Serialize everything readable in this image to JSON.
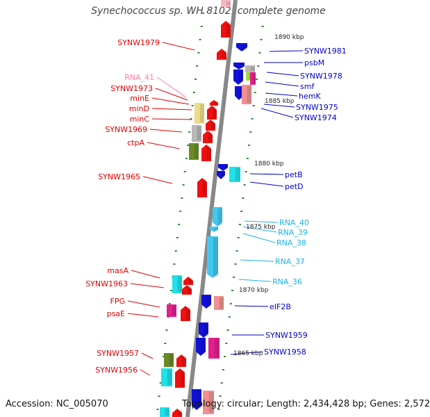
{
  "title": "Synechococcus sp. WH 8102, complete genome",
  "footer": {
    "accession": "Accession: NC_005070",
    "stats": "Topology: circular; Length: 2,434,428 bp; Genes: 2,572"
  },
  "colors": {
    "backbone": "#888888",
    "tick": "#2e8b2e",
    "left_label": "#e00000",
    "right_label": "#0000cc",
    "rna_right": "#1ab3e6",
    "rna_left": "#ff80a0",
    "cds_red": "#f01010",
    "cds_blue": "#1010d8",
    "rna_cyan": "#40c8f0",
    "yellow": "#eedd88",
    "gray": "#b8b8b8",
    "olive": "#6b8a26",
    "cyan": "#20e0e8",
    "magenta": "#e0208c",
    "pink": "#f09090",
    "lime": "#a0e040",
    "lightpink": "#f8b8c0"
  },
  "scale_labels": [
    "1890 kbp",
    "1885 kbp",
    "1880 kbp",
    "1875 kbp",
    "1870 kbp",
    "1865 kbp"
  ],
  "genes_left": [
    {
      "label": "SYNW1979",
      "color": "left_label"
    },
    {
      "label": "RNA_41",
      "color": "rna_left"
    },
    {
      "label": "SYNW1973",
      "color": "left_label"
    },
    {
      "label": "minE",
      "color": "left_label"
    },
    {
      "label": "minD",
      "color": "left_label"
    },
    {
      "label": "minC",
      "color": "left_label"
    },
    {
      "label": "SYNW1969",
      "color": "left_label"
    },
    {
      "label": "ctpA",
      "color": "left_label"
    },
    {
      "label": "SYNW1965",
      "color": "left_label"
    },
    {
      "label": "masA",
      "color": "left_label"
    },
    {
      "label": "SYNW1963",
      "color": "left_label"
    },
    {
      "label": "FPG",
      "color": "left_label"
    },
    {
      "label": "psaE",
      "color": "left_label"
    },
    {
      "label": "SYNW1957",
      "color": "left_label"
    },
    {
      "label": "SYNW1956",
      "color": "left_label"
    }
  ],
  "genes_right": [
    {
      "label": "SYNW1981",
      "color": "right_label"
    },
    {
      "label": "psbM",
      "color": "right_label"
    },
    {
      "label": "SYNW1978",
      "color": "right_label"
    },
    {
      "label": "smf",
      "color": "right_label"
    },
    {
      "label": "hemK",
      "color": "right_label"
    },
    {
      "label": "SYNW1975",
      "color": "right_label"
    },
    {
      "label": "SYNW1974",
      "color": "right_label"
    },
    {
      "label": "petB",
      "color": "right_label"
    },
    {
      "label": "petD",
      "color": "right_label"
    },
    {
      "label": "RNA_40",
      "color": "rna_right"
    },
    {
      "label": "RNA_39",
      "color": "rna_right"
    },
    {
      "label": "RNA_38",
      "color": "rna_right"
    },
    {
      "label": "RNA_37",
      "color": "rna_right"
    },
    {
      "label": "RNA_36",
      "color": "rna_right"
    },
    {
      "label": "eIF2B",
      "color": "right_label"
    },
    {
      "label": "SYNW1959",
      "color": "right_label"
    },
    {
      "label": "SYNW1958",
      "color": "right_label"
    }
  ]
}
